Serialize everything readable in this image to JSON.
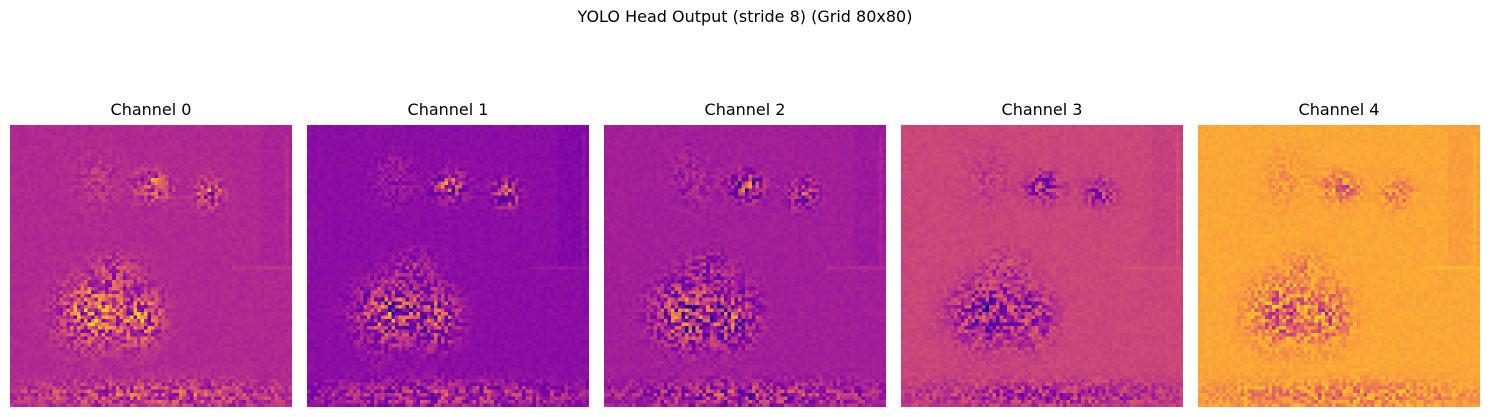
{
  "title": "YOLO Head Output (stride 8) (Grid 80x80)",
  "chart_data": {
    "type": "heatmap",
    "title": "YOLO Head Output (stride 8) (Grid 80x80)",
    "grid": [
      80,
      80
    ],
    "colormap": "plasma",
    "axes": "off",
    "panels": [
      {
        "title": "Channel 0",
        "base_level": 0.4,
        "hotspot_polarity": "bright"
      },
      {
        "title": "Channel 1",
        "base_level": 0.29,
        "hotspot_polarity": "bright"
      },
      {
        "title": "Channel 2",
        "base_level": 0.36,
        "hotspot_polarity": "mixed"
      },
      {
        "title": "Channel 3",
        "base_level": 0.5,
        "hotspot_polarity": "dark"
      },
      {
        "title": "Channel 4",
        "base_level": 0.8,
        "hotspot_polarity": "dark"
      }
    ]
  }
}
